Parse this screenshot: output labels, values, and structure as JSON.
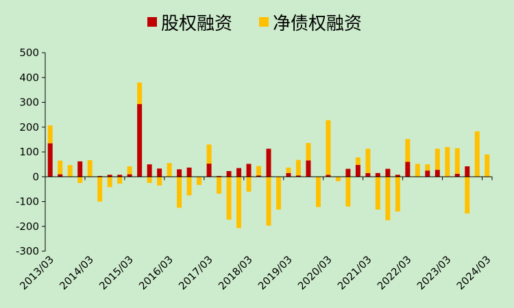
{
  "chart_data": {
    "type": "bar",
    "stacked": true,
    "legend_position": "top",
    "grid": false,
    "ylim": [
      -300,
      500
    ],
    "yticks": [
      -300,
      -200,
      -100,
      0,
      100,
      200,
      300,
      400,
      500
    ],
    "ytick_labels": [
      "-300",
      "-200",
      "-100",
      "0",
      "100",
      "200",
      "300",
      "400",
      "500"
    ],
    "x_tick_labels": [
      "2013/03",
      "2014/03",
      "2015/03",
      "2016/03",
      "2017/03",
      "2018/03",
      "2019/03",
      "2020/03",
      "2021/03",
      "2022/03",
      "2023/03",
      "2024/03"
    ],
    "categories": [
      "2013Q1",
      "2013Q2",
      "2013Q3",
      "2013Q4",
      "2014Q1",
      "2014Q2",
      "2014Q3",
      "2014Q4",
      "2015Q1",
      "2015Q2",
      "2015Q3",
      "2015Q4",
      "2016Q1",
      "2016Q2",
      "2016Q3",
      "2016Q4",
      "2017Q1",
      "2017Q2",
      "2017Q3",
      "2017Q4",
      "2018Q1",
      "2018Q2",
      "2018Q3",
      "2018Q4",
      "2019Q1",
      "2019Q2",
      "2019Q3",
      "2019Q4",
      "2020Q1",
      "2020Q2",
      "2020Q3",
      "2020Q4",
      "2021Q1",
      "2021Q2",
      "2021Q3",
      "2021Q4",
      "2022Q1",
      "2022Q2",
      "2022Q3",
      "2022Q4",
      "2023Q1",
      "2023Q2",
      "2023Q3",
      "2023Q4",
      "2024Q1"
    ],
    "series": [
      {
        "name": "股权融资",
        "color": "#c00000",
        "values": [
          135,
          10,
          0,
          62,
          0,
          3,
          8,
          8,
          10,
          293,
          50,
          33,
          0,
          30,
          37,
          0,
          53,
          3,
          23,
          35,
          52,
          5,
          113,
          0,
          15,
          5,
          66,
          0,
          8,
          0,
          32,
          48,
          15,
          15,
          32,
          8,
          60,
          0,
          25,
          28,
          0,
          12,
          42,
          0,
          0
        ]
      },
      {
        "name": "净债权融资",
        "color": "#ffc000",
        "values": [
          72,
          55,
          47,
          -25,
          67,
          -100,
          -42,
          -28,
          32,
          87,
          -25,
          -35,
          55,
          -125,
          -75,
          -33,
          77,
          -68,
          -173,
          -207,
          -60,
          38,
          -197,
          -132,
          22,
          63,
          70,
          -122,
          220,
          -18,
          -120,
          30,
          98,
          -132,
          -175,
          -140,
          92,
          52,
          25,
          85,
          120,
          103,
          -148,
          183,
          90
        ]
      }
    ]
  }
}
